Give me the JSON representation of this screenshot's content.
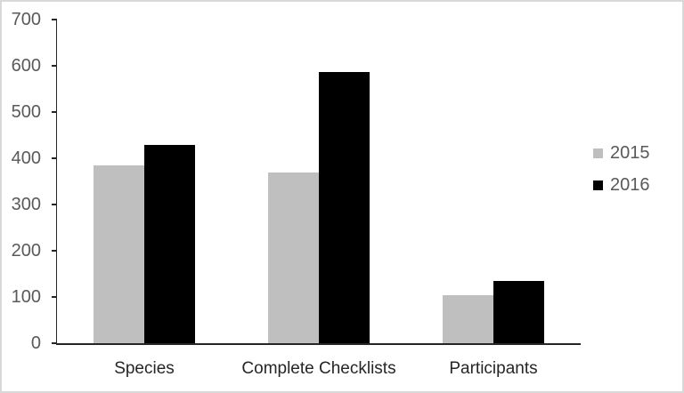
{
  "window": {
    "background": "#ffffff",
    "frame_border_color": "#d9d9d9"
  },
  "chart_data": {
    "type": "bar",
    "title": "",
    "xlabel": "",
    "ylabel": "",
    "categories": [
      "Species",
      "Complete Checklists",
      "Participants"
    ],
    "series": [
      {
        "name": "2015",
        "color": "#bfbfbf",
        "values": [
          385,
          370,
          103
        ]
      },
      {
        "name": "2016",
        "color": "#000000",
        "values": [
          428,
          586,
          134
        ]
      }
    ],
    "ylim": [
      0,
      700
    ],
    "yticks": [
      0,
      100,
      200,
      300,
      400,
      500,
      600,
      700
    ],
    "grid": false,
    "legend_position": "right",
    "axis_color": "#262626",
    "tick_label_color": "#595959",
    "category_label_color": "#262626",
    "legend_text_color": "#595959"
  }
}
